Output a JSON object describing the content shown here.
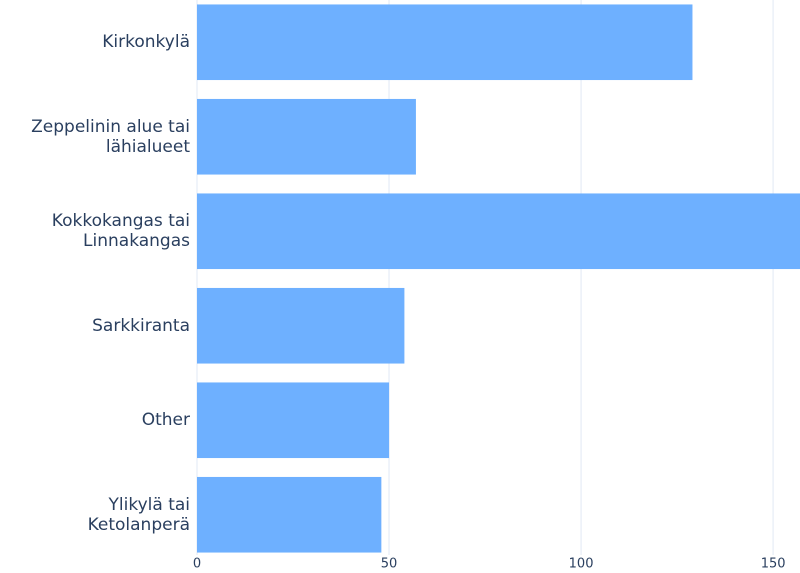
{
  "chart_data": {
    "type": "bar",
    "orientation": "horizontal",
    "categories": [
      "Kirkonkylä",
      "Zeppelinin alue tai\nlähialueet",
      "Kokkokangas tai\nLinnakangas",
      "Sarkkiranta",
      "Other",
      "Ylikylä tai\nKetolanperä"
    ],
    "values": [
      129,
      57,
      157,
      54,
      50,
      48
    ],
    "color": "#6eb0ff",
    "xlim": [
      0,
      157
    ],
    "xticks": [
      0,
      50,
      100,
      150
    ],
    "grid": true
  }
}
